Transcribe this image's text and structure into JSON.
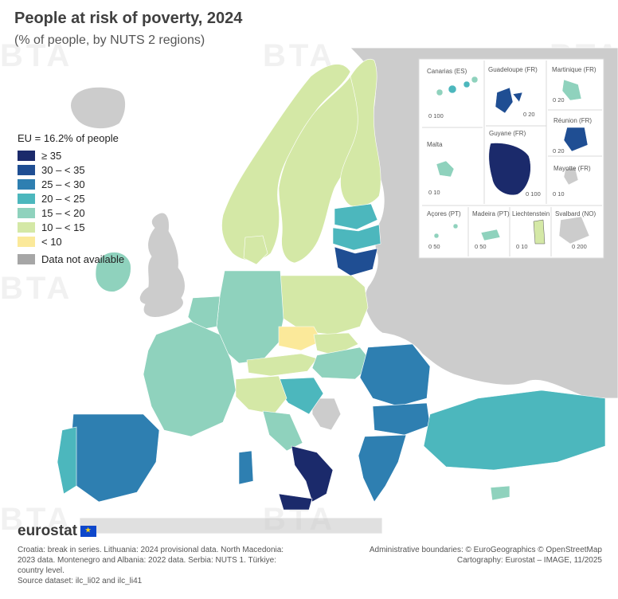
{
  "title": "People at risk of poverty, 2024",
  "subtitle": "(% of people, by NUTS 2 regions)",
  "legend": {
    "eu_average": "EU = 16.2% of people",
    "classes": [
      {
        "label": "≥ 35",
        "color": "#1b2a6b"
      },
      {
        "label": "30 – < 35",
        "color": "#1f4e93"
      },
      {
        "label": "25 – < 30",
        "color": "#2e7fb1"
      },
      {
        "label": "20 – < 25",
        "color": "#4cb7bd"
      },
      {
        "label": "15 – < 20",
        "color": "#8fd2bd"
      },
      {
        "label": "10 – < 15",
        "color": "#d4e8a6"
      },
      {
        "label": "< 10",
        "color": "#fbe99a"
      }
    ],
    "not_available": {
      "label": "Data not available",
      "color": "#a6a6a6"
    }
  },
  "insets": [
    {
      "name": "Canarias (ES)",
      "scale": "0    100"
    },
    {
      "name": "Guadeloupe (FR)",
      "scale": "0   20"
    },
    {
      "name": "Martinique (FR)",
      "scale": "0   20"
    },
    {
      "name": "Réunion (FR)",
      "scale": "0   20"
    },
    {
      "name": "Malta",
      "scale": "0   10"
    },
    {
      "name": "Guyane (FR)",
      "scale": "0    100"
    },
    {
      "name": "Mayotte (FR)",
      "scale": "0  10"
    },
    {
      "name": "Açores (PT)",
      "scale": "0  50"
    },
    {
      "name": "Madeira (PT)",
      "scale": "0    50"
    },
    {
      "name": "Liechtenstein",
      "scale": "0   10"
    },
    {
      "name": "Svalbard (NO)",
      "scale": "0    200"
    }
  ],
  "footer": {
    "logo": "eurostat",
    "notes": [
      "Croatia: break in series. Lithuania: 2024 provisional data. North Macedonia:",
      "2023 data. Montenegro and Albania: 2022 data. Serbia: NUTS 1. Türkiye:",
      "country level.",
      "Source dataset: ilc_li02 and ilc_li41"
    ],
    "credits": [
      "Administrative boundaries: © EuroGeographics © OpenStreetMap",
      "Cartography: Eurostat – IMAGE, 11/2025"
    ]
  },
  "watermark": "BTA",
  "colors": {
    "non_eu_land": "#cccccc",
    "sea": "#ffffff",
    "inset_border": "#d9d9d9"
  }
}
